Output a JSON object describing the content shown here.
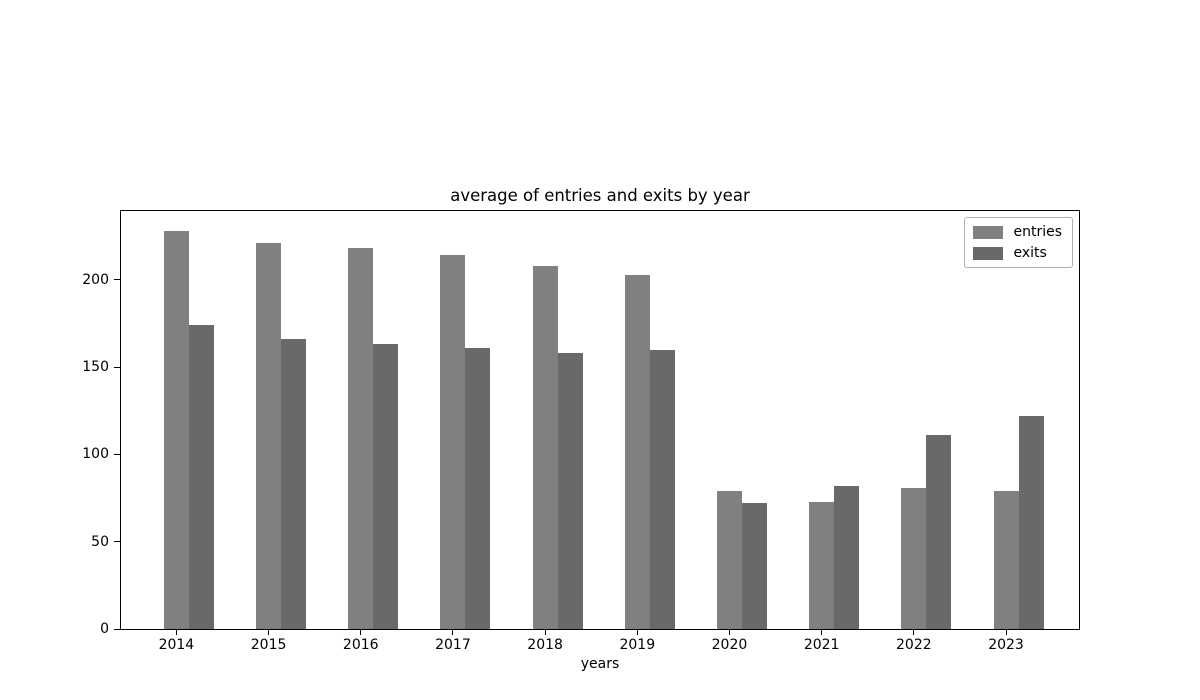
{
  "figure": {
    "title": "average of entries and exits by year",
    "xlabel": "years"
  },
  "chart_data": {
    "type": "bar",
    "title": "average of entries and exits by year",
    "xlabel": "years",
    "ylabel": "",
    "categories": [
      "2014",
      "2015",
      "2016",
      "2017",
      "2018",
      "2019",
      "2020",
      "2021",
      "2022",
      "2023"
    ],
    "series": [
      {
        "name": "entries",
        "color": "#808080",
        "values": [
          228,
          221,
          218,
          214,
          208,
          203,
          79,
          73,
          81,
          79
        ]
      },
      {
        "name": "exits",
        "color": "#696969",
        "values": [
          174,
          166,
          163,
          161,
          158,
          160,
          72,
          82,
          111,
          122
        ]
      }
    ],
    "ylim": [
      0,
      239.4
    ],
    "yticks": [
      0,
      50,
      100,
      150,
      200
    ],
    "grid": false,
    "legend_position": "upper right",
    "background_color": "#ffffff",
    "spine_color": "#000000",
    "legend_border_color": "#b0b0b0"
  }
}
